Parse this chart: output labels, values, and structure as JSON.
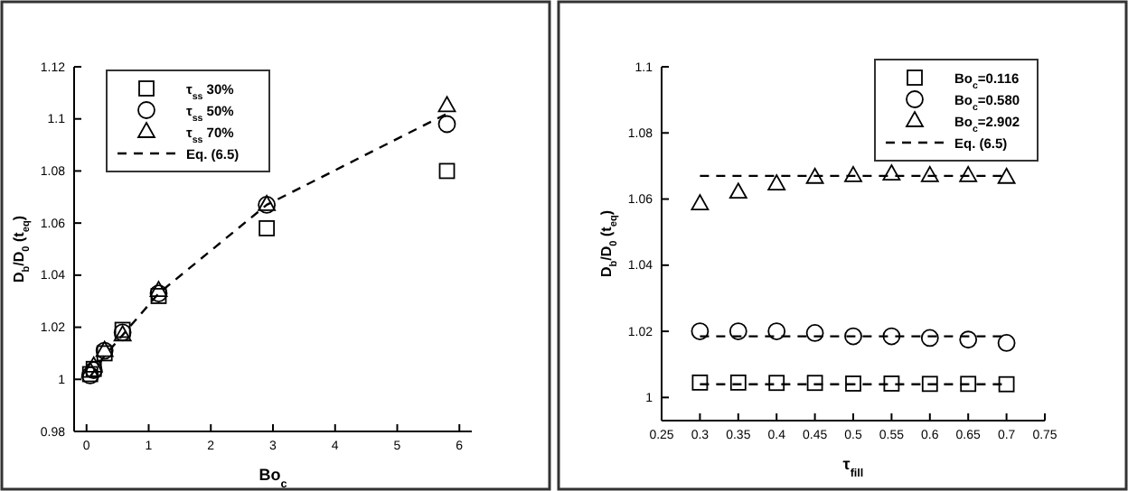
{
  "chart_data": [
    {
      "type": "scatter",
      "xlabel": "Bo$_{c}$",
      "ylabel": "D$_{b}$/D$_{0}$ (t$_{eq}$)",
      "xlim": [
        -0.2,
        6.2
      ],
      "ylim": [
        0.98,
        1.12
      ],
      "xticks": [
        0,
        1,
        2,
        3,
        4,
        5,
        6
      ],
      "yticks": [
        0.98,
        1,
        1.02,
        1.04,
        1.06,
        1.08,
        1.1,
        1.12
      ],
      "legend": "top left",
      "grid": false,
      "series": [
        {
          "name": "τ$_{ss}$ 30%",
          "color": "#000000",
          "marker": "square",
          "x": [
            0.058,
            0.116,
            0.29,
            0.58,
            1.16,
            2.9,
            5.8
          ],
          "values": [
            1.002,
            1.004,
            1.01,
            1.019,
            1.032,
            1.058,
            1.08
          ]
        },
        {
          "name": "τ$_{ss}$ 50%",
          "color": "#000000",
          "marker": "circle",
          "x": [
            0.058,
            0.116,
            0.29,
            0.58,
            1.16,
            2.9,
            5.8
          ],
          "values": [
            1.0015,
            1.0035,
            1.011,
            1.018,
            1.033,
            1.067,
            1.098
          ]
        },
        {
          "name": "τ$_{ss}$ 70%",
          "color": "#000000",
          "marker": "triangle",
          "x": [
            0.058,
            0.116,
            0.29,
            0.58,
            1.16,
            2.9,
            5.8
          ],
          "values": [
            1.003,
            1.005,
            1.011,
            1.017,
            1.034,
            1.067,
            1.105
          ]
        },
        {
          "name": "Eq. (6.5)",
          "type": "line",
          "line_style": "dashed",
          "marker": "none",
          "color": "#000000",
          "x": [
            0.058,
            0.29,
            0.58,
            1.16,
            2.9,
            5.8
          ],
          "values": [
            1.001,
            1.009,
            1.017,
            1.033,
            1.067,
            1.102
          ]
        }
      ]
    },
    {
      "type": "scatter",
      "xlabel": "τ$_{fill}$",
      "ylabel": "D$_{b}$/D$_{0}$ (t$_{eq}$)",
      "xlim": [
        0.25,
        0.75
      ],
      "ylim": [
        0.993,
        1.1
      ],
      "xticks": [
        0.25,
        0.3,
        0.35,
        0.4,
        0.45,
        0.5,
        0.55,
        0.6,
        0.65,
        0.7,
        0.75
      ],
      "yticks": [
        1,
        1.02,
        1.04,
        1.06,
        1.08,
        1.1
      ],
      "legend": "top right",
      "grid": false,
      "series": [
        {
          "name": "Bo$_{c}$=0.116",
          "color": "#000000",
          "marker": "square",
          "x": [
            0.3,
            0.35,
            0.4,
            0.45,
            0.5,
            0.55,
            0.6,
            0.65,
            0.7
          ],
          "values": [
            1.0045,
            1.0045,
            1.0044,
            1.0044,
            1.0042,
            1.0042,
            1.0041,
            1.0041,
            1.004
          ]
        },
        {
          "name": "Bo$_{c}$=0.580",
          "color": "#000000",
          "marker": "circle",
          "x": [
            0.3,
            0.35,
            0.4,
            0.45,
            0.5,
            0.55,
            0.6,
            0.65,
            0.7
          ],
          "values": [
            1.02,
            1.02,
            1.02,
            1.0195,
            1.0185,
            1.0185,
            1.018,
            1.0175,
            1.0165
          ]
        },
        {
          "name": "Bo$_{c}$=2.902",
          "color": "#000000",
          "marker": "triangle",
          "x": [
            0.3,
            0.35,
            0.4,
            0.45,
            0.5,
            0.55,
            0.6,
            0.65,
            0.7
          ],
          "values": [
            1.0585,
            1.062,
            1.0645,
            1.0665,
            1.067,
            1.0675,
            1.067,
            1.067,
            1.0665
          ]
        },
        {
          "name": "Eq. (6.5)",
          "type": "line",
          "line_style": "dashed",
          "marker": "none",
          "color": "#000000",
          "x": [
            0.3,
            0.7
          ],
          "values": [
            1.067,
            1.067
          ]
        },
        {
          "type": "line",
          "line_style": "dashed",
          "marker": "none",
          "color": "#000000",
          "x": [
            0.3,
            0.7
          ],
          "values": [
            1.0185,
            1.0185
          ]
        },
        {
          "type": "line",
          "line_style": "dashed",
          "marker": "none",
          "color": "#000000",
          "x": [
            0.3,
            0.7
          ],
          "values": [
            1.004,
            1.004
          ]
        }
      ]
    }
  ]
}
